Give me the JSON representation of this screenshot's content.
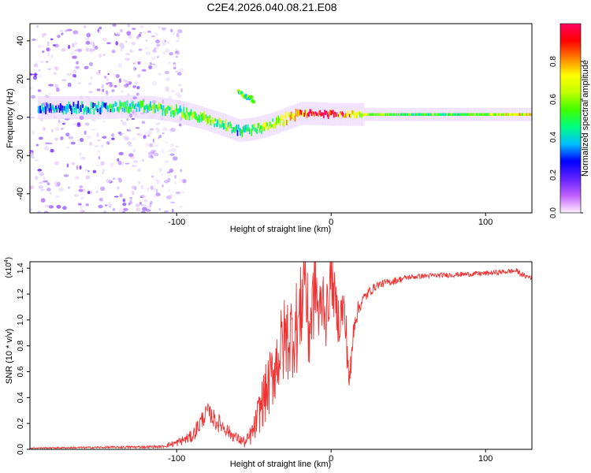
{
  "page_title": "C2E4.2026.040.08.21.E08",
  "chart_data": [
    {
      "type": "heatmap",
      "name": "spectrogram",
      "xlabel": "Height of straight line (km)",
      "ylabel": "Frequency (Hz)",
      "xlim": [
        -195,
        130
      ],
      "ylim": [
        -50,
        49
      ],
      "xticks": [
        -100,
        0,
        100
      ],
      "yticks": [
        -40,
        -20,
        0,
        20,
        40
      ],
      "colorbar": {
        "label": "Normalized spectral amplitude",
        "range": [
          0,
          1
        ],
        "ticks": [
          0.0,
          0.2,
          0.4,
          0.6,
          0.8
        ],
        "tick_labels": [
          "0.0",
          "0.2",
          "0.4",
          "0.6",
          "0.8"
        ],
        "colors": [
          "#fff0ff",
          "#c060ff",
          "#6020ff",
          "#0000ff",
          "#00c0ff",
          "#00ff80",
          "#40ff00",
          "#c0ff00",
          "#ffff00",
          "#ff8000",
          "#ff0000",
          "#ff0060"
        ]
      },
      "ridge": {
        "x": [
          -190,
          -170,
          -150,
          -130,
          -115,
          -100,
          -85,
          -70,
          -60,
          -50,
          -40,
          -30,
          -20,
          -10,
          0,
          20,
          50,
          80,
          100,
          130
        ],
        "freq": [
          5,
          5,
          5,
          5.5,
          5,
          3,
          0,
          -4,
          -7,
          -6,
          -4,
          -1,
          2,
          2,
          1.5,
          1.5,
          1.5,
          1.5,
          1.5,
          1.5
        ],
        "amplitude": [
          0.3,
          0.35,
          0.38,
          0.45,
          0.5,
          0.5,
          0.55,
          0.5,
          0.45,
          0.55,
          0.6,
          0.65,
          0.8,
          0.9,
          0.92,
          0.6,
          0.5,
          0.5,
          0.6,
          0.7
        ]
      },
      "secondary_branch": {
        "x": [
          -60,
          -55,
          -50
        ],
        "freq": [
          13,
          11,
          9
        ]
      },
      "noise_region_x": [
        -195,
        -110
      ]
    },
    {
      "type": "line",
      "name": "snr",
      "xlabel": "Height of straight line (km)",
      "ylabel": "SNR (10 * v/v)",
      "y_multiplier": "(x10",
      "y_multiplier_exp": "4",
      "y_multiplier_close": ")",
      "xlim": [
        -195,
        130
      ],
      "ylim": [
        0,
        1.45
      ],
      "xticks": [
        -100,
        0,
        100
      ],
      "yticks": [
        0.0,
        0.2,
        0.4,
        0.6,
        0.8,
        1.0,
        1.2,
        1.4
      ],
      "color": "#ee3333",
      "series": [
        {
          "name": "SNR",
          "x": [
            -195,
            -150,
            -110,
            -100,
            -90,
            -85,
            -80,
            -75,
            -70,
            -65,
            -60,
            -55,
            -50,
            -45,
            -40,
            -35,
            -30,
            -25,
            -20,
            -17,
            -15,
            -12,
            -10,
            -8,
            -5,
            -3,
            0,
            3,
            5,
            8,
            10,
            12,
            15,
            20,
            25,
            30,
            40,
            50,
            60,
            80,
            100,
            110,
            120,
            125,
            130
          ],
          "y": [
            0.01,
            0.015,
            0.02,
            0.05,
            0.1,
            0.2,
            0.3,
            0.22,
            0.18,
            0.12,
            0.08,
            0.05,
            0.15,
            0.35,
            0.5,
            0.7,
            0.85,
            0.9,
            1.0,
            1.45,
            0.9,
            1.1,
            1.3,
            1.0,
            1.2,
            1.0,
            1.35,
            1.1,
            1.0,
            1.1,
            0.85,
            0.5,
            1.0,
            1.15,
            1.22,
            1.27,
            1.3,
            1.33,
            1.34,
            1.35,
            1.36,
            1.37,
            1.38,
            1.34,
            1.33
          ],
          "spread": [
            0.005,
            0.008,
            0.01,
            0.03,
            0.05,
            0.08,
            0.06,
            0.08,
            0.06,
            0.05,
            0.04,
            0.05,
            0.1,
            0.2,
            0.25,
            0.3,
            0.35,
            0.35,
            0.4,
            0.3,
            0.4,
            0.35,
            0.3,
            0.3,
            0.25,
            0.25,
            0.2,
            0.2,
            0.2,
            0.2,
            0.2,
            0.15,
            0.1,
            0.05,
            0.04,
            0.03,
            0.03,
            0.02,
            0.02,
            0.02,
            0.02,
            0.02,
            0.02,
            0.02,
            0.02
          ]
        }
      ]
    }
  ]
}
